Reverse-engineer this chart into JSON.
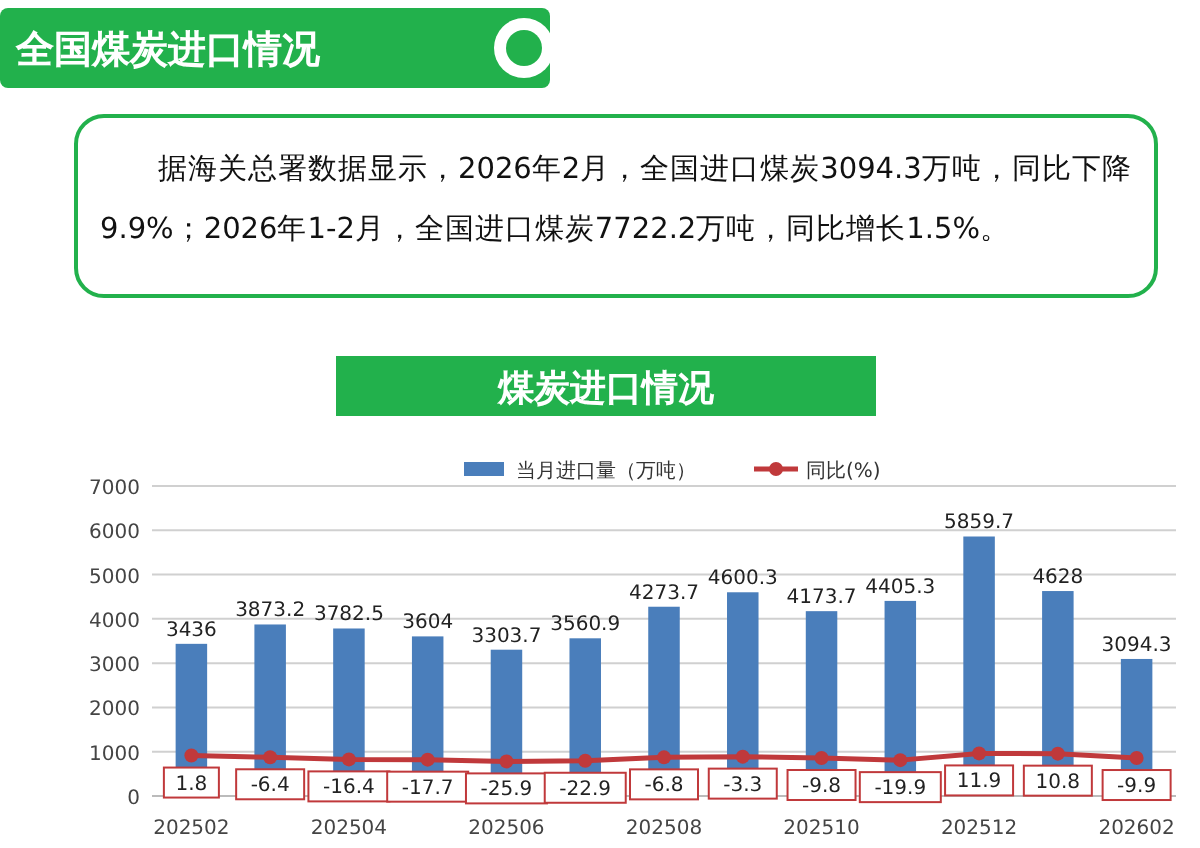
{
  "chart_data": {
    "type": "bar",
    "title": "全国煤炭进口情况",
    "subtitle": "据海关总署数据显示，2026年2月，全国进口煤炭3094.3万吨，同比下降9.9%；2026年1-2月，全国进口煤炭7722.2万吨，同比增长1.5%。",
    "annotations": [
      "煤炭进口情况"
    ],
    "categories": [
      "202502",
      null,
      "202504",
      null,
      "202506",
      null,
      "202508",
      null,
      "202510",
      null,
      "202512",
      null,
      "202602"
    ],
    "series": [
      {
        "name": "当月进口量（万吨）",
        "color": "#4a7ebb",
        "values": [
          3436,
          3873.2,
          3782.5,
          3604,
          3303.7,
          3560.9,
          4273.7,
          4600.3,
          4173.7,
          4405.3,
          5859.7,
          4628,
          3094.3
        ]
      },
      {
        "name": "同比(%)",
        "type": "line",
        "axis": "y2",
        "color": "#c0393b",
        "marker": "circle",
        "values": [
          1.8,
          -6.4,
          -16.4,
          -17.7,
          -25.9,
          -22.9,
          -6.8,
          -3.3,
          -9.8,
          -19.9,
          11.9,
          10.8,
          -9.9
        ]
      }
    ],
    "ylim": [
      0,
      7000
    ],
    "yticks": [
      0,
      1000,
      2000,
      3000,
      4000,
      5000,
      6000,
      7000
    ],
    "y2lim": [
      -190,
      1280
    ],
    "tick_labels": "xy",
    "grid": "y",
    "legend": "top",
    "data_labels": true
  }
}
